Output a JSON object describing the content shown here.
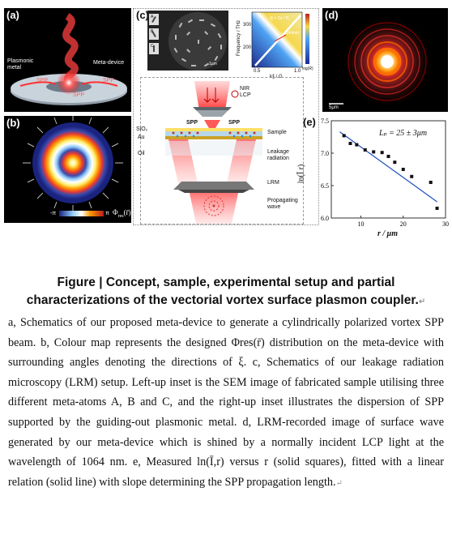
{
  "panels": {
    "a": {
      "label": "(a)",
      "metal_label": "Plasmonic\nmetal",
      "device_label": "Meta-device",
      "spp_left": "SPP",
      "spp_right": "SPP",
      "spp_mid": "SPP"
    },
    "b": {
      "label": "(b)",
      "scale_min": "-π",
      "scale_max": "π",
      "scale_symbol": "Φ",
      "scale_sub": "res",
      "scale_arg": "(r̄)"
    },
    "c": {
      "label": "(c)",
      "sem_labels": [
        "A",
        "B",
        "C"
      ],
      "sem_scale": "1μm",
      "disp_ylabel": "Frequency / THz",
      "disp_yticks": [
        "300",
        "200"
      ],
      "disp_xticks": [
        "0.5",
        "1.0"
      ],
      "disp_xlabel": "k∥ / G",
      "disp_eq": "f∥ = 2π / Pₓ",
      "disp_wavelength": "1064nm",
      "disp_colorbar": "log(R)",
      "nir": "NIR\nLCP",
      "sio2": "SiO₂",
      "au": "Au",
      "spp_l": "SPP",
      "spp_r": "SPP",
      "sample": "Sample",
      "oil": "Oil",
      "leakage": "Leakage\nradiation",
      "lrm": "LRM",
      "propagating": "Propagating\nwave"
    },
    "d": {
      "label": "(d)",
      "scale": "5μm"
    },
    "e": {
      "label": "(e)",
      "annotation": "Lₚ = 25 ± 3μm"
    }
  },
  "chart_data": {
    "type": "scatter",
    "xlabel": "r / μm",
    "ylabel": "ln(Ī r)",
    "xticks": [
      10,
      20,
      30
    ],
    "yticks": [
      6.0,
      6.5,
      7.0,
      7.5
    ],
    "xlim": [
      3,
      30
    ],
    "ylim": [
      6.0,
      7.5
    ],
    "points": [
      {
        "x": 6,
        "y": 7.27
      },
      {
        "x": 7.5,
        "y": 7.15
      },
      {
        "x": 9,
        "y": 7.13
      },
      {
        "x": 11,
        "y": 7.05
      },
      {
        "x": 13,
        "y": 7.02
      },
      {
        "x": 15,
        "y": 7.01
      },
      {
        "x": 16.5,
        "y": 6.95
      },
      {
        "x": 18,
        "y": 6.86
      },
      {
        "x": 20,
        "y": 6.75
      },
      {
        "x": 22,
        "y": 6.64
      },
      {
        "x": 26.5,
        "y": 6.55
      },
      {
        "x": 28,
        "y": 6.15
      }
    ],
    "fit": {
      "x": [
        5,
        28
      ],
      "y": [
        7.33,
        6.25
      ]
    },
    "grid": false
  },
  "caption": {
    "title": "Figure | Concept, sample, experimental setup and partial characterizations of the vectorial vortex surface plasmon coupler.",
    "body": "a, Schematics of our proposed meta-device to generate a cylindrically polarized vortex SPP beam. b, Colour map represents the designed Φres(r̄) distribution on the meta-device with surrounding angles denoting the directions of ξ. c, Schematics of our leakage radiation microscopy (LRM) setup. Left-up inset is the SEM image of fabricated sample utilising three different meta-atoms A, B and C, and the right-up inset illustrates the dispersion of SPP supported by the guiding-out plasmonic metal. d, LRM-recorded image of surface wave generated by our meta-device which is shined by a normally incident LCP light at the wavelength of 1064 nm. e, Measured ln(Ī,r) versus r (solid squares), fitted with a linear relation (solid line) with slope determining the SPP propagation length."
  }
}
